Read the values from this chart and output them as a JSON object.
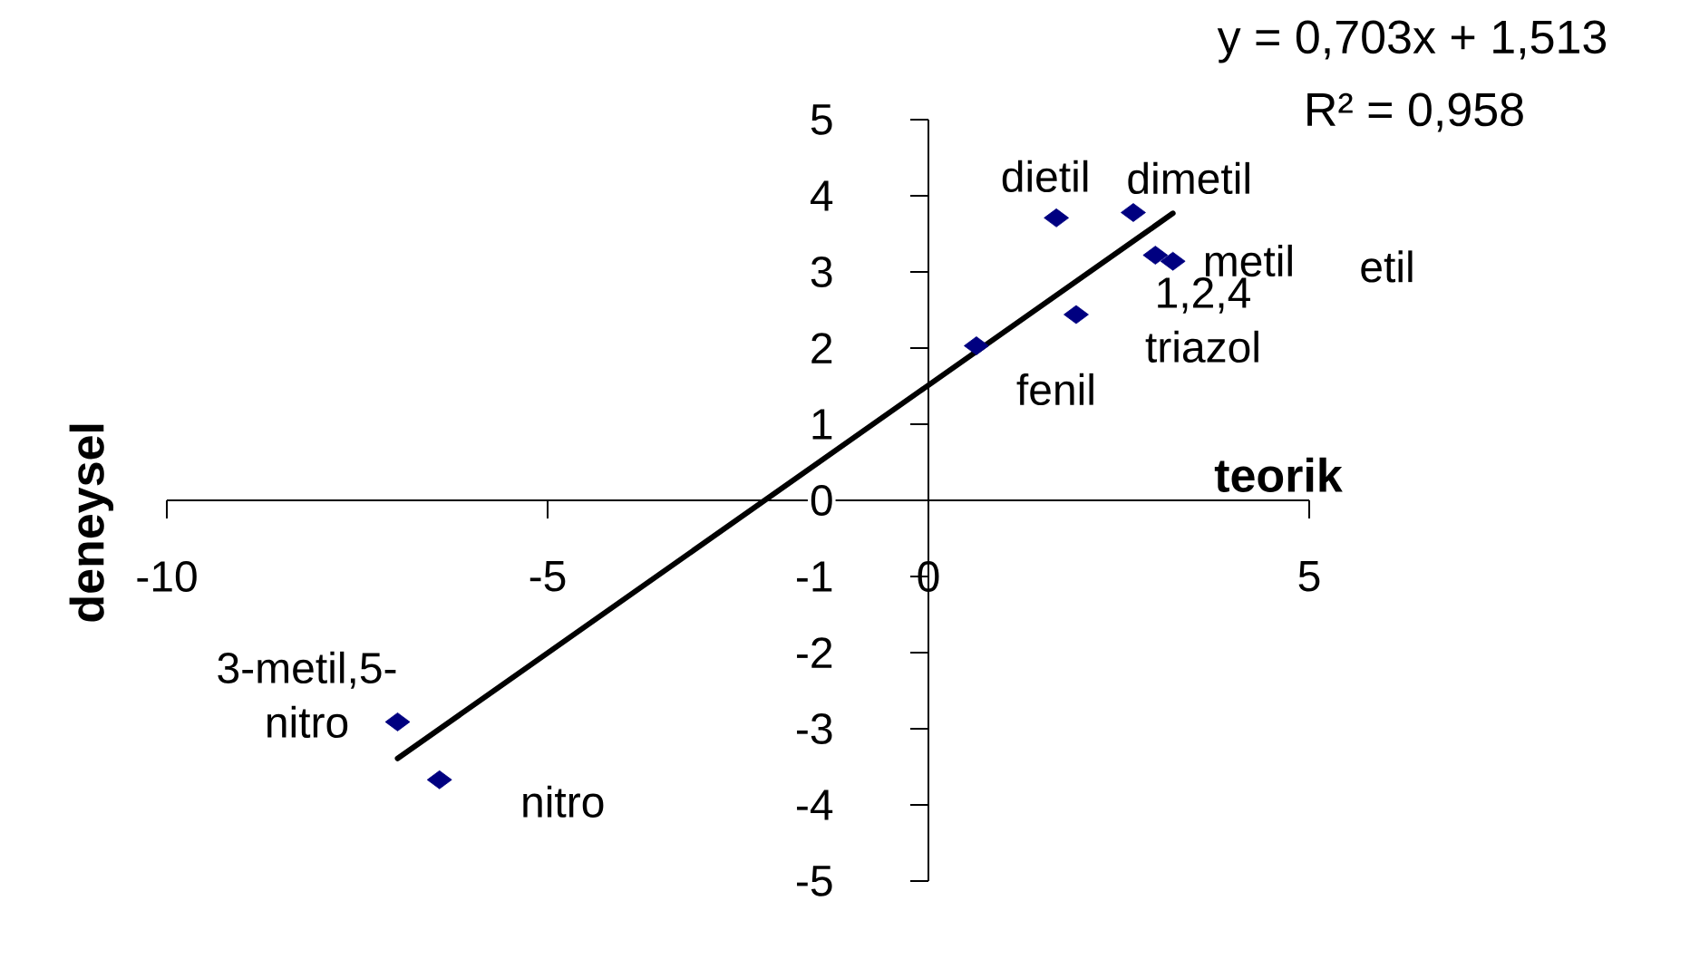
{
  "chart_data": {
    "type": "scatter",
    "xlabel": "teorik",
    "ylabel": "deneysel",
    "xlim": [
      -10,
      5
    ],
    "ylim": [
      -5,
      5
    ],
    "xticks": [
      -10,
      -5,
      0,
      5
    ],
    "yticks": [
      -5,
      -4,
      -3,
      -2,
      -1,
      0,
      1,
      2,
      3,
      4,
      5
    ],
    "marker": "diamond",
    "series": [
      {
        "color": "#000080",
        "x": [
          1.68,
          2.69,
          2.98,
          3.21,
          1.94,
          0.63,
          -6.97,
          -6.42
        ],
        "values": [
          3.71,
          3.78,
          3.22,
          3.14,
          2.44,
          2.03,
          -2.91,
          -3.67
        ]
      },
      {
        "type": "line",
        "color": "#000000",
        "x": [
          -6.97,
          3.21
        ],
        "values": [
          -3.39,
          3.77
        ],
        "marker": "none",
        "line_style": "solid"
      }
    ],
    "annotations": [
      "y = 0,703x + 1,513",
      "R² = 0,958",
      {
        "text": "dietil",
        "x": 1.68,
        "y": 3.71
      },
      {
        "text": "dimetil",
        "x": 2.69,
        "y": 3.78
      },
      {
        "text": "metil",
        "x": 2.98,
        "y": 3.22
      },
      "etil",
      {
        "text": "1,2,4 triazol",
        "x": 1.94,
        "y": 2.44
      },
      {
        "text": "fenil",
        "x": 0.63,
        "y": 2.03
      },
      {
        "text": "3-metil,5-nitro",
        "x": -6.97,
        "y": -2.91
      },
      {
        "text": "nitro",
        "x": -6.42,
        "y": -3.67
      }
    ]
  }
}
